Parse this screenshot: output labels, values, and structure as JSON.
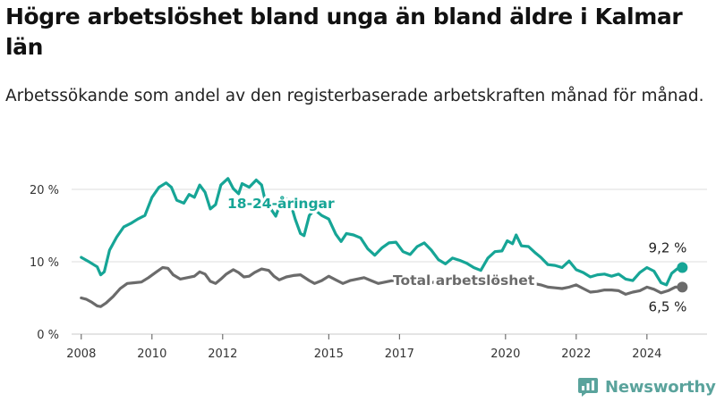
{
  "header": {
    "title": "Högre arbetslöshet bland unga än bland äldre i Kalmar län",
    "subtitle": "Arbetssökande som andel av den registerbaserade arbetskraften månad för månad."
  },
  "brand": {
    "name": "Newsworthy",
    "icon": "newsworthy-logo-icon",
    "color": "#5aa39c"
  },
  "chart_data": {
    "type": "line",
    "title": "Högre arbetslöshet bland unga än bland äldre i Kalmar län",
    "subtitle": "Arbetssökande som andel av den registerbaserade arbetskraften månad för månad.",
    "xlabel": "",
    "ylabel": "",
    "xlim": [
      2007.6,
      2025.7
    ],
    "ylim": [
      0,
      22
    ],
    "grid": true,
    "y_ticks": [
      {
        "value": 0,
        "label": "0 %"
      },
      {
        "value": 10,
        "label": "10 %"
      },
      {
        "value": 20,
        "label": "20 %"
      }
    ],
    "x_ticks": [
      {
        "value": 2008,
        "label": "2008"
      },
      {
        "value": 2010,
        "label": "2010"
      },
      {
        "value": 2012,
        "label": "2012"
      },
      {
        "value": 2015,
        "label": "2015"
      },
      {
        "value": 2017,
        "label": "2017"
      },
      {
        "value": 2020,
        "label": "2020"
      },
      {
        "value": 2022,
        "label": "2022"
      },
      {
        "value": 2024,
        "label": "2024"
      }
    ],
    "series": [
      {
        "name": "18-24-åringar",
        "color": "#16a596",
        "end_label": "9,2 %",
        "points": [
          [
            2008.0,
            10.6
          ],
          [
            2008.25,
            9.9
          ],
          [
            2008.45,
            9.3
          ],
          [
            2008.55,
            8.2
          ],
          [
            2008.65,
            8.6
          ],
          [
            2008.8,
            11.6
          ],
          [
            2009.0,
            13.4
          ],
          [
            2009.2,
            14.8
          ],
          [
            2009.4,
            15.3
          ],
          [
            2009.6,
            15.9
          ],
          [
            2009.8,
            16.4
          ],
          [
            2010.0,
            18.9
          ],
          [
            2010.2,
            20.3
          ],
          [
            2010.4,
            20.9
          ],
          [
            2010.55,
            20.3
          ],
          [
            2010.7,
            18.5
          ],
          [
            2010.9,
            18.1
          ],
          [
            2011.05,
            19.3
          ],
          [
            2011.2,
            18.9
          ],
          [
            2011.35,
            20.6
          ],
          [
            2011.5,
            19.6
          ],
          [
            2011.65,
            17.3
          ],
          [
            2011.8,
            17.9
          ],
          [
            2011.95,
            20.6
          ],
          [
            2012.15,
            21.5
          ],
          [
            2012.3,
            20.1
          ],
          [
            2012.45,
            19.4
          ],
          [
            2012.55,
            20.8
          ],
          [
            2012.75,
            20.3
          ],
          [
            2012.95,
            21.3
          ],
          [
            2013.1,
            20.6
          ],
          [
            2013.2,
            18.5
          ],
          [
            2013.35,
            17.4
          ],
          [
            2013.5,
            16.3
          ],
          [
            2013.7,
            19.0
          ],
          [
            2013.9,
            18.4
          ],
          [
            2014.05,
            15.9
          ],
          [
            2014.2,
            13.9
          ],
          [
            2014.3,
            13.6
          ],
          [
            2014.45,
            16.4
          ],
          [
            2014.6,
            17.2
          ],
          [
            2014.8,
            16.4
          ],
          [
            2015.0,
            15.9
          ],
          [
            2015.2,
            13.8
          ],
          [
            2015.35,
            12.8
          ],
          [
            2015.5,
            13.9
          ],
          [
            2015.7,
            13.7
          ],
          [
            2015.9,
            13.3
          ],
          [
            2016.1,
            11.8
          ],
          [
            2016.3,
            10.9
          ],
          [
            2016.5,
            11.9
          ],
          [
            2016.7,
            12.6
          ],
          [
            2016.9,
            12.7
          ],
          [
            2017.1,
            11.4
          ],
          [
            2017.3,
            11.0
          ],
          [
            2017.5,
            12.1
          ],
          [
            2017.7,
            12.6
          ],
          [
            2017.9,
            11.6
          ],
          [
            2018.1,
            10.3
          ],
          [
            2018.3,
            9.7
          ],
          [
            2018.5,
            10.5
          ],
          [
            2018.7,
            10.2
          ],
          [
            2018.9,
            9.8
          ],
          [
            2019.1,
            9.2
          ],
          [
            2019.3,
            8.8
          ],
          [
            2019.5,
            10.5
          ],
          [
            2019.7,
            11.4
          ],
          [
            2019.9,
            11.5
          ],
          [
            2020.05,
            12.9
          ],
          [
            2020.2,
            12.5
          ],
          [
            2020.3,
            13.7
          ],
          [
            2020.45,
            12.2
          ],
          [
            2020.65,
            12.1
          ],
          [
            2020.85,
            11.2
          ],
          [
            2021.0,
            10.6
          ],
          [
            2021.2,
            9.6
          ],
          [
            2021.4,
            9.5
          ],
          [
            2021.6,
            9.2
          ],
          [
            2021.8,
            10.1
          ],
          [
            2022.0,
            8.9
          ],
          [
            2022.2,
            8.5
          ],
          [
            2022.4,
            7.9
          ],
          [
            2022.6,
            8.2
          ],
          [
            2022.8,
            8.3
          ],
          [
            2023.0,
            8.0
          ],
          [
            2023.2,
            8.3
          ],
          [
            2023.4,
            7.6
          ],
          [
            2023.6,
            7.4
          ],
          [
            2023.8,
            8.5
          ],
          [
            2024.0,
            9.2
          ],
          [
            2024.2,
            8.7
          ],
          [
            2024.4,
            7.1
          ],
          [
            2024.55,
            6.8
          ],
          [
            2024.7,
            8.4
          ],
          [
            2024.85,
            9.0
          ],
          [
            2025.0,
            9.2
          ]
        ]
      },
      {
        "name": "Total arbetslöshet",
        "color": "#6b6b6b",
        "end_label": "6,5 %",
        "points": [
          [
            2008.0,
            5.0
          ],
          [
            2008.15,
            4.8
          ],
          [
            2008.3,
            4.4
          ],
          [
            2008.45,
            3.9
          ],
          [
            2008.55,
            3.8
          ],
          [
            2008.7,
            4.3
          ],
          [
            2008.9,
            5.2
          ],
          [
            2009.1,
            6.3
          ],
          [
            2009.3,
            7.0
          ],
          [
            2009.5,
            7.1
          ],
          [
            2009.7,
            7.2
          ],
          [
            2009.9,
            7.8
          ],
          [
            2010.1,
            8.5
          ],
          [
            2010.3,
            9.2
          ],
          [
            2010.45,
            9.1
          ],
          [
            2010.6,
            8.2
          ],
          [
            2010.8,
            7.6
          ],
          [
            2011.0,
            7.8
          ],
          [
            2011.2,
            8.0
          ],
          [
            2011.35,
            8.6
          ],
          [
            2011.5,
            8.3
          ],
          [
            2011.65,
            7.3
          ],
          [
            2011.8,
            7.0
          ],
          [
            2011.95,
            7.6
          ],
          [
            2012.1,
            8.3
          ],
          [
            2012.3,
            8.9
          ],
          [
            2012.45,
            8.5
          ],
          [
            2012.6,
            7.9
          ],
          [
            2012.75,
            8.0
          ],
          [
            2012.9,
            8.5
          ],
          [
            2013.1,
            9.0
          ],
          [
            2013.3,
            8.8
          ],
          [
            2013.45,
            8.0
          ],
          [
            2013.6,
            7.5
          ],
          [
            2013.8,
            7.9
          ],
          [
            2014.0,
            8.1
          ],
          [
            2014.2,
            8.2
          ],
          [
            2014.45,
            7.4
          ],
          [
            2014.6,
            7.0
          ],
          [
            2014.8,
            7.4
          ],
          [
            2015.0,
            8.0
          ],
          [
            2015.2,
            7.5
          ],
          [
            2015.4,
            7.0
          ],
          [
            2015.6,
            7.4
          ],
          [
            2015.8,
            7.6
          ],
          [
            2016.0,
            7.8
          ],
          [
            2016.2,
            7.4
          ],
          [
            2016.4,
            7.0
          ],
          [
            2016.6,
            7.2
          ],
          [
            2016.8,
            7.4
          ],
          [
            2017.0,
            7.3
          ],
          [
            2017.2,
            7.0
          ],
          [
            2017.4,
            7.4
          ],
          [
            2017.6,
            7.3
          ],
          [
            2017.8,
            7.0
          ],
          [
            2018.0,
            7.2
          ],
          [
            2018.2,
            6.9
          ],
          [
            2018.4,
            6.8
          ],
          [
            2018.6,
            7.0
          ],
          [
            2018.8,
            7.1
          ],
          [
            2019.0,
            7.0
          ],
          [
            2019.2,
            6.9
          ],
          [
            2019.4,
            7.1
          ],
          [
            2019.6,
            7.3
          ],
          [
            2019.8,
            7.2
          ],
          [
            2020.0,
            7.4
          ],
          [
            2020.2,
            7.8
          ],
          [
            2020.4,
            7.6
          ],
          [
            2020.6,
            7.2
          ],
          [
            2020.8,
            7.0
          ],
          [
            2021.0,
            6.8
          ],
          [
            2021.2,
            6.5
          ],
          [
            2021.4,
            6.4
          ],
          [
            2021.6,
            6.3
          ],
          [
            2021.8,
            6.5
          ],
          [
            2022.0,
            6.8
          ],
          [
            2022.2,
            6.3
          ],
          [
            2022.4,
            5.8
          ],
          [
            2022.6,
            5.9
          ],
          [
            2022.8,
            6.1
          ],
          [
            2023.0,
            6.1
          ],
          [
            2023.2,
            6.0
          ],
          [
            2023.4,
            5.5
          ],
          [
            2023.6,
            5.8
          ],
          [
            2023.8,
            6.0
          ],
          [
            2024.0,
            6.5
          ],
          [
            2024.2,
            6.2
          ],
          [
            2024.4,
            5.7
          ],
          [
            2024.6,
            6.0
          ],
          [
            2024.8,
            6.5
          ],
          [
            2025.0,
            6.5
          ]
        ]
      }
    ]
  }
}
